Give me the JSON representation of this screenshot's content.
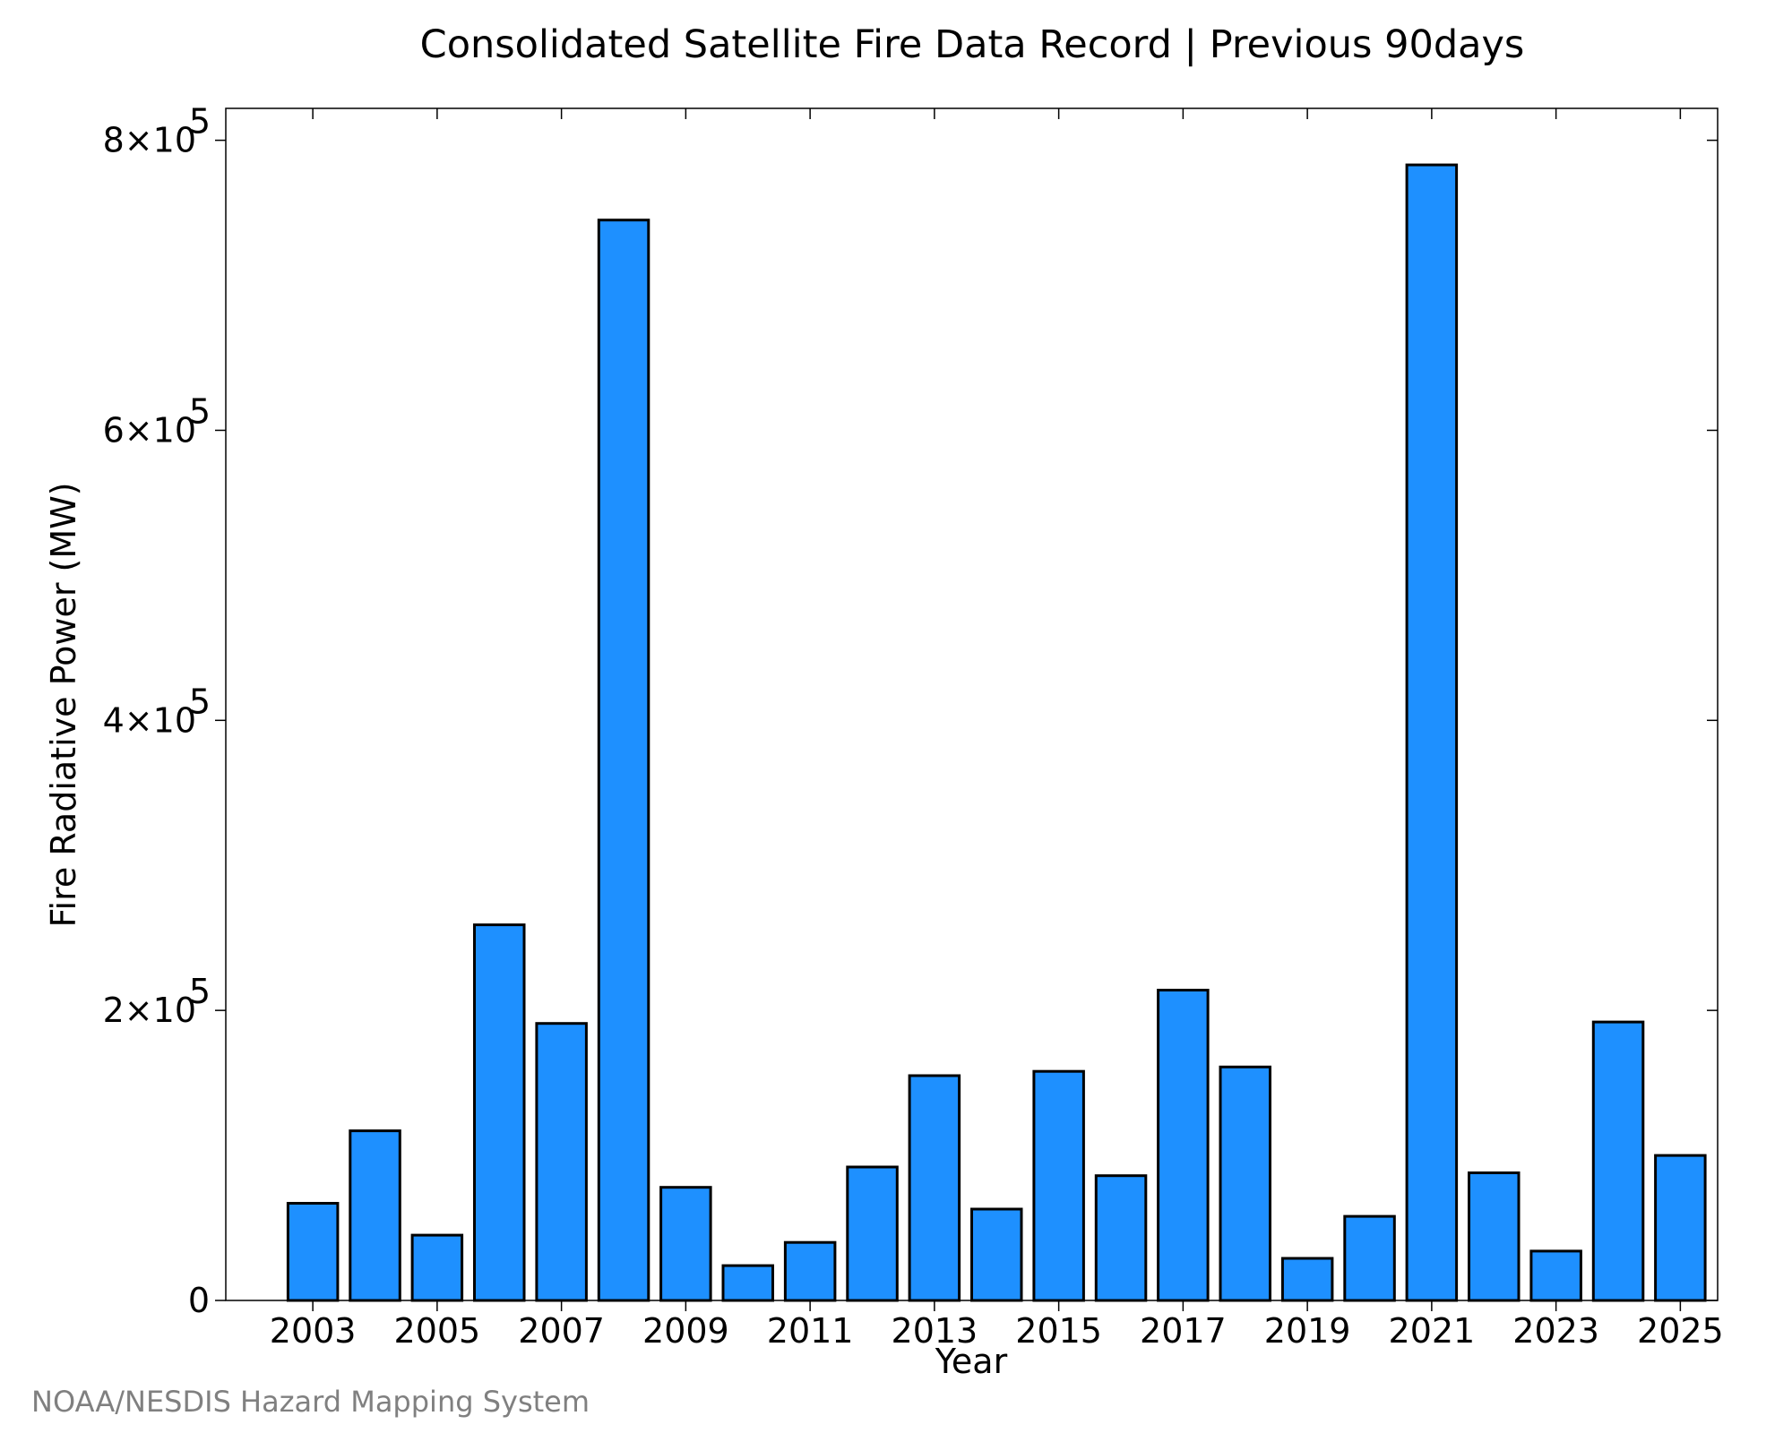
{
  "chart_data": {
    "type": "bar",
    "title": "Consolidated Satellite Fire Data Record | Previous 90days",
    "xlabel": "Year",
    "ylabel": "Fire Radiative Power (MW)",
    "categories": [
      2003,
      2004,
      2005,
      2006,
      2007,
      2008,
      2009,
      2010,
      2011,
      2012,
      2013,
      2014,
      2015,
      2016,
      2017,
      2018,
      2019,
      2020,
      2021,
      2022,
      2023,
      2024,
      2025
    ],
    "values": [
      67000,
      117000,
      45000,
      259000,
      191000,
      745000,
      78000,
      24000,
      40000,
      92000,
      155000,
      63000,
      158000,
      86000,
      214000,
      161000,
      29000,
      58000,
      783000,
      88000,
      34000,
      192000,
      100000
    ],
    "xticks": [
      "2003",
      "2005",
      "2007",
      "2009",
      "2011",
      "2013",
      "2015",
      "2017",
      "2019",
      "2021",
      "2023",
      "2025"
    ],
    "yticks": [
      {
        "value": 0,
        "mantissa": "0",
        "exponent": ""
      },
      {
        "value": 200000,
        "mantissa": "2×10",
        "exponent": "5"
      },
      {
        "value": 400000,
        "mantissa": "4×10",
        "exponent": "5"
      },
      {
        "value": 600000,
        "mantissa": "6×10",
        "exponent": "5"
      },
      {
        "value": 800000,
        "mantissa": "8×10",
        "exponent": "5"
      }
    ],
    "xlim": [
      2001.6,
      2025.6
    ],
    "ylim": [
      0,
      822000
    ],
    "bar_color": "#1e90ff",
    "grid": false,
    "legend": "none"
  },
  "footer": {
    "credit": "NOAA/NESDIS Hazard Mapping System"
  }
}
